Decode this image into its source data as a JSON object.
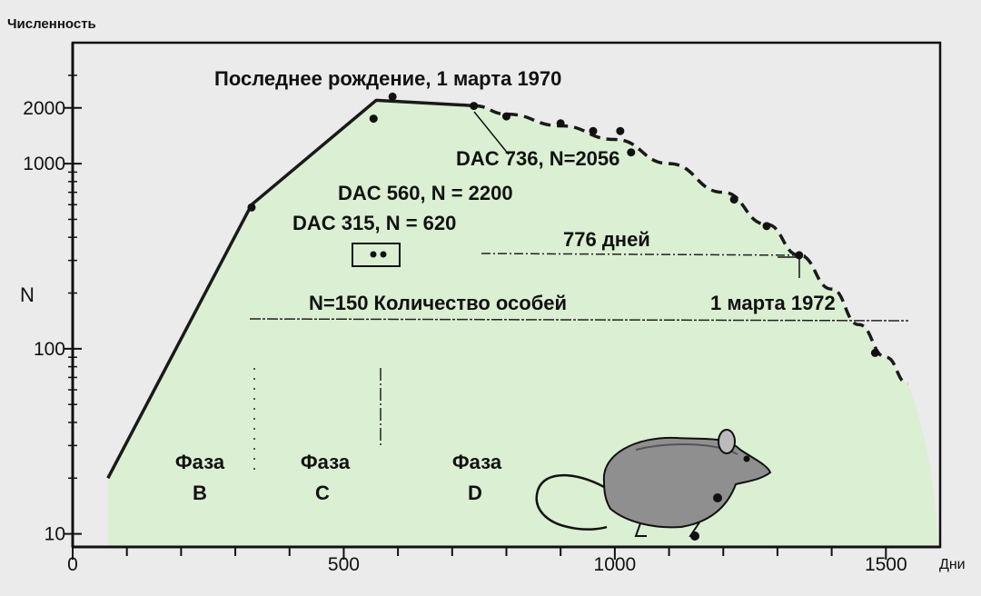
{
  "chart_data": {
    "type": "line",
    "ylabel": "Численность",
    "ylabel_side": "N",
    "xlabel": "Дни",
    "x_ticks": [
      0,
      500,
      1000,
      1500
    ],
    "y_ticks": [
      {
        "value": 10,
        "label": "10"
      },
      {
        "value": 100,
        "label": "100"
      },
      {
        "value": 1000,
        "label": "1000"
      },
      {
        "value": 2000,
        "label": "2000"
      }
    ],
    "xlim": [
      0,
      1600
    ],
    "ylim": [
      8.5,
      4500
    ],
    "y_scale": "log",
    "grid": false,
    "colors": {
      "background": "#ebebeb",
      "area_fill": "#dbefd2",
      "line": "#1a1a1a"
    },
    "series": [
      {
        "style": "solid",
        "x": [
          65,
          330,
          560,
          740
        ],
        "y": [
          20,
          600,
          2200,
          2056
        ]
      },
      {
        "style": "dashed",
        "x": [
          740,
          800,
          900,
          1000,
          1100,
          1200,
          1280,
          1340,
          1400,
          1450,
          1500,
          1540
        ],
        "y": [
          2056,
          1850,
          1600,
          1350,
          1000,
          700,
          470,
          320,
          210,
          135,
          90,
          65
        ]
      }
    ],
    "points": [
      {
        "x": 330,
        "y": 580
      },
      {
        "x": 555,
        "y": 1750
      },
      {
        "x": 590,
        "y": 2300
      },
      {
        "x": 740,
        "y": 2050
      },
      {
        "x": 800,
        "y": 1800
      },
      {
        "x": 900,
        "y": 1650
      },
      {
        "x": 960,
        "y": 1500
      },
      {
        "x": 1010,
        "y": 1500
      },
      {
        "x": 1030,
        "y": 1150
      },
      {
        "x": 1220,
        "y": 640
      },
      {
        "x": 1280,
        "y": 460
      },
      {
        "x": 1340,
        "y": 320
      },
      {
        "x": 1480,
        "y": 95
      }
    ],
    "annotations": {
      "last_birth": "Последнее рождение, 1 марта 1970",
      "dac736": "DAC 736, N=2056",
      "dac560": "DAC 560, N = 2200",
      "dac315": "DAC 315, N = 620",
      "days776": "776 дней",
      "n150": "N=150 Количество особей",
      "march1972": "1 марта 1972"
    },
    "phases": [
      {
        "word": "Фаза",
        "letter": "B"
      },
      {
        "word": "Фаза",
        "letter": "C"
      },
      {
        "word": "Фаза",
        "letter": "D"
      }
    ],
    "phase_boundaries_x": [
      330,
      560
    ],
    "hline_n150": 150,
    "hline_776": 350,
    "decoration": "mouse-illustration"
  }
}
